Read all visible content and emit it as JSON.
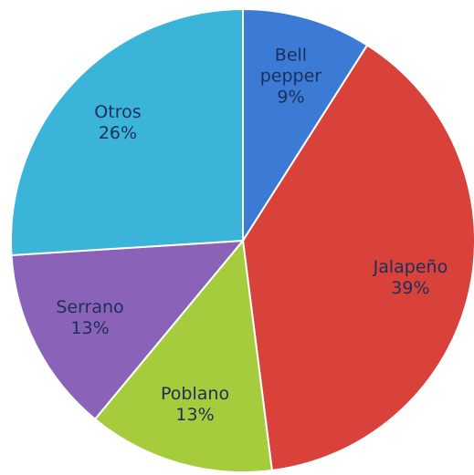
{
  "chart_data": {
    "type": "pie",
    "categories": [
      "Bell pepper",
      "Jalapeño",
      "Poblano",
      "Serrano",
      "Otros"
    ],
    "values": [
      9,
      39,
      13,
      13,
      26
    ],
    "value_labels": [
      "9%",
      "39%",
      "13%",
      "13%",
      "26%"
    ],
    "colors": [
      "#3b7bd6",
      "#d9413b",
      "#a5cc3d",
      "#8a63b8",
      "#3ab5d9"
    ]
  }
}
